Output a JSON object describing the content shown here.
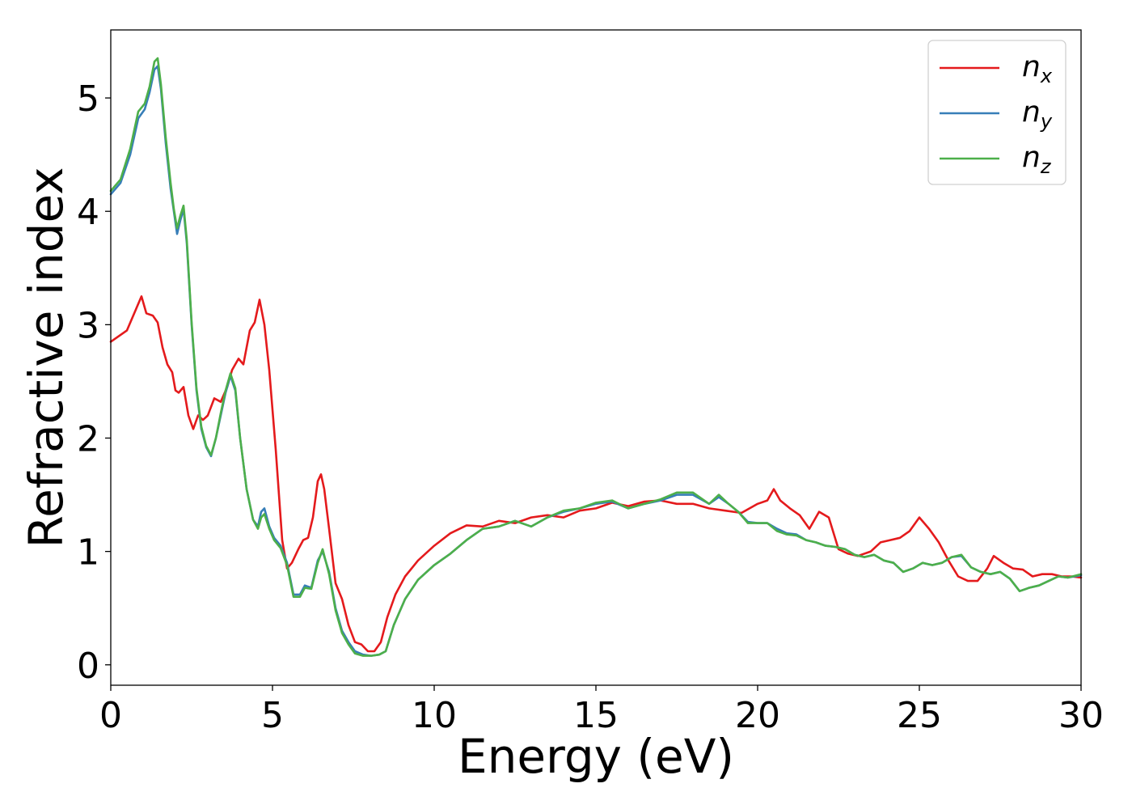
{
  "chart_data": {
    "type": "line",
    "xlabel": "Energy (eV)",
    "ylabel": "Refractive index",
    "xlim": [
      0,
      30
    ],
    "ylim": [
      -0.18,
      5.6
    ],
    "xticks": [
      0,
      5,
      10,
      15,
      20,
      25,
      30
    ],
    "xtick_labels": [
      "0",
      "5",
      "10",
      "15",
      "20",
      "25",
      "30"
    ],
    "yticks": [
      0,
      1,
      2,
      3,
      4,
      5
    ],
    "ytick_labels": [
      "0",
      "1",
      "2",
      "3",
      "4",
      "5"
    ],
    "grid": false,
    "legend_position": "top-right",
    "series": [
      {
        "name": "n_x",
        "legend_base": "n",
        "legend_sub": "x",
        "color": "#e41a1c",
        "x": [
          0,
          0.5,
          0.8,
          0.95,
          1.1,
          1.3,
          1.45,
          1.6,
          1.75,
          1.9,
          2.0,
          2.1,
          2.25,
          2.4,
          2.55,
          2.7,
          2.85,
          3.0,
          3.2,
          3.4,
          3.6,
          3.75,
          3.95,
          4.1,
          4.3,
          4.45,
          4.6,
          4.75,
          4.9,
          5.1,
          5.3,
          5.45,
          5.6,
          5.8,
          5.95,
          6.1,
          6.25,
          6.4,
          6.5,
          6.6,
          6.75,
          6.95,
          7.15,
          7.35,
          7.55,
          7.75,
          7.95,
          8.15,
          8.35,
          8.55,
          8.8,
          9.1,
          9.5,
          10.0,
          10.5,
          11.0,
          11.5,
          12.0,
          12.5,
          13.0,
          13.5,
          14.0,
          14.5,
          15.0,
          15.5,
          16.0,
          16.5,
          17.0,
          17.5,
          18.0,
          18.5,
          19.0,
          19.5,
          20.0,
          20.3,
          20.5,
          20.7,
          21.0,
          21.3,
          21.6,
          21.9,
          22.2,
          22.5,
          22.8,
          23.1,
          23.5,
          23.8,
          24.1,
          24.4,
          24.7,
          25.0,
          25.3,
          25.6,
          25.9,
          26.2,
          26.5,
          26.8,
          27.1,
          27.3,
          27.6,
          27.9,
          28.2,
          28.5,
          28.8,
          29.1,
          29.4,
          29.7,
          30.0
        ],
        "y": [
          2.85,
          2.95,
          3.15,
          3.25,
          3.1,
          3.08,
          3.02,
          2.8,
          2.65,
          2.58,
          2.42,
          2.4,
          2.45,
          2.2,
          2.08,
          2.2,
          2.16,
          2.2,
          2.35,
          2.32,
          2.45,
          2.6,
          2.7,
          2.65,
          2.95,
          3.02,
          3.22,
          3.0,
          2.6,
          1.9,
          1.1,
          0.85,
          0.9,
          1.02,
          1.1,
          1.12,
          1.3,
          1.62,
          1.68,
          1.55,
          1.2,
          0.72,
          0.58,
          0.35,
          0.2,
          0.18,
          0.12,
          0.12,
          0.2,
          0.42,
          0.62,
          0.78,
          0.92,
          1.05,
          1.16,
          1.23,
          1.22,
          1.27,
          1.25,
          1.3,
          1.32,
          1.3,
          1.36,
          1.38,
          1.43,
          1.4,
          1.44,
          1.45,
          1.42,
          1.42,
          1.38,
          1.36,
          1.34,
          1.42,
          1.45,
          1.55,
          1.45,
          1.38,
          1.32,
          1.2,
          1.35,
          1.3,
          1.02,
          0.98,
          0.96,
          1.0,
          1.08,
          1.1,
          1.12,
          1.18,
          1.3,
          1.2,
          1.08,
          0.92,
          0.78,
          0.74,
          0.74,
          0.85,
          0.96,
          0.9,
          0.85,
          0.84,
          0.78,
          0.8,
          0.8,
          0.78,
          0.78,
          0.77
        ]
      },
      {
        "name": "n_y",
        "legend_base": "n",
        "legend_sub": "y",
        "color": "#377eb8",
        "x": [
          0,
          0.3,
          0.6,
          0.85,
          1.05,
          1.2,
          1.35,
          1.45,
          1.55,
          1.7,
          1.85,
          1.95,
          2.05,
          2.15,
          2.25,
          2.35,
          2.5,
          2.65,
          2.8,
          2.95,
          3.1,
          3.25,
          3.4,
          3.55,
          3.7,
          3.85,
          4.0,
          4.2,
          4.4,
          4.55,
          4.65,
          4.75,
          4.9,
          5.05,
          5.25,
          5.45,
          5.65,
          5.85,
          6.0,
          6.2,
          6.4,
          6.55,
          6.75,
          6.95,
          7.15,
          7.35,
          7.55,
          7.8,
          8.05,
          8.3,
          8.5,
          8.75,
          9.1,
          9.5,
          10.0,
          10.5,
          11.0,
          11.5,
          12.0,
          12.5,
          13.0,
          13.5,
          14.0,
          14.5,
          15.0,
          15.5,
          16.0,
          16.5,
          17.0,
          17.5,
          18.0,
          18.5,
          18.8,
          19.1,
          19.4,
          19.7,
          20.0,
          20.3,
          20.6,
          20.9,
          21.2,
          21.5,
          21.8,
          22.1,
          22.4,
          22.7,
          23.0,
          23.3,
          23.6,
          23.9,
          24.2,
          24.5,
          24.8,
          25.1,
          25.4,
          25.7,
          26.0,
          26.3,
          26.6,
          26.9,
          27.2,
          27.5,
          27.8,
          28.1,
          28.4,
          28.7,
          29.0,
          29.3,
          29.6,
          30.0
        ],
        "y": [
          4.15,
          4.25,
          4.5,
          4.82,
          4.9,
          5.05,
          5.25,
          5.28,
          5.08,
          4.6,
          4.2,
          4.0,
          3.8,
          3.92,
          4.02,
          3.72,
          3.0,
          2.42,
          2.08,
          1.92,
          1.84,
          2.0,
          2.2,
          2.4,
          2.55,
          2.42,
          2.0,
          1.55,
          1.28,
          1.22,
          1.35,
          1.38,
          1.22,
          1.12,
          1.05,
          0.9,
          0.62,
          0.62,
          0.7,
          0.68,
          0.92,
          1.0,
          0.82,
          0.5,
          0.3,
          0.2,
          0.12,
          0.09,
          0.08,
          0.09,
          0.12,
          0.35,
          0.58,
          0.75,
          0.88,
          0.98,
          1.1,
          1.2,
          1.22,
          1.27,
          1.22,
          1.3,
          1.35,
          1.38,
          1.42,
          1.44,
          1.38,
          1.42,
          1.45,
          1.5,
          1.5,
          1.42,
          1.48,
          1.42,
          1.35,
          1.26,
          1.25,
          1.25,
          1.2,
          1.16,
          1.15,
          1.1,
          1.08,
          1.05,
          1.04,
          1.02,
          0.97,
          0.95,
          0.97,
          0.92,
          0.9,
          0.82,
          0.85,
          0.9,
          0.88,
          0.9,
          0.95,
          0.96,
          0.86,
          0.82,
          0.8,
          0.82,
          0.76,
          0.65,
          0.68,
          0.7,
          0.74,
          0.78,
          0.77,
          0.79
        ]
      },
      {
        "name": "n_z",
        "legend_base": "n",
        "legend_sub": "z",
        "color": "#4daf4a",
        "x": [
          0,
          0.3,
          0.6,
          0.85,
          1.05,
          1.2,
          1.35,
          1.45,
          1.55,
          1.7,
          1.85,
          1.95,
          2.05,
          2.15,
          2.25,
          2.35,
          2.5,
          2.65,
          2.8,
          2.95,
          3.1,
          3.25,
          3.4,
          3.55,
          3.7,
          3.85,
          4.0,
          4.2,
          4.4,
          4.55,
          4.65,
          4.75,
          4.9,
          5.05,
          5.25,
          5.45,
          5.65,
          5.85,
          6.0,
          6.2,
          6.4,
          6.55,
          6.75,
          6.95,
          7.15,
          7.35,
          7.55,
          7.8,
          8.05,
          8.3,
          8.5,
          8.75,
          9.1,
          9.5,
          10.0,
          10.5,
          11.0,
          11.5,
          12.0,
          12.5,
          13.0,
          13.5,
          14.0,
          14.5,
          15.0,
          15.5,
          16.0,
          16.5,
          17.0,
          17.5,
          18.0,
          18.5,
          18.8,
          19.1,
          19.4,
          19.7,
          20.0,
          20.3,
          20.6,
          20.9,
          21.2,
          21.5,
          21.8,
          22.1,
          22.4,
          22.7,
          23.0,
          23.3,
          23.6,
          23.9,
          24.2,
          24.5,
          24.8,
          25.1,
          25.4,
          25.7,
          26.0,
          26.3,
          26.6,
          26.9,
          27.2,
          27.5,
          27.8,
          28.1,
          28.4,
          28.7,
          29.0,
          29.3,
          29.6,
          30.0
        ],
        "y": [
          4.18,
          4.28,
          4.55,
          4.88,
          4.95,
          5.1,
          5.32,
          5.35,
          5.12,
          4.65,
          4.25,
          4.02,
          3.85,
          3.96,
          4.05,
          3.75,
          3.02,
          2.44,
          2.1,
          1.93,
          1.85,
          2.0,
          2.22,
          2.42,
          2.57,
          2.44,
          2.0,
          1.55,
          1.28,
          1.2,
          1.3,
          1.33,
          1.2,
          1.1,
          1.03,
          0.88,
          0.6,
          0.6,
          0.68,
          0.67,
          0.9,
          1.02,
          0.8,
          0.48,
          0.28,
          0.18,
          0.1,
          0.08,
          0.08,
          0.09,
          0.12,
          0.35,
          0.58,
          0.75,
          0.88,
          0.98,
          1.1,
          1.2,
          1.22,
          1.27,
          1.22,
          1.3,
          1.36,
          1.38,
          1.43,
          1.45,
          1.38,
          1.42,
          1.46,
          1.52,
          1.52,
          1.42,
          1.5,
          1.42,
          1.35,
          1.25,
          1.25,
          1.25,
          1.18,
          1.15,
          1.14,
          1.1,
          1.08,
          1.05,
          1.04,
          1.02,
          0.97,
          0.95,
          0.97,
          0.92,
          0.9,
          0.82,
          0.85,
          0.9,
          0.88,
          0.9,
          0.95,
          0.97,
          0.86,
          0.82,
          0.8,
          0.82,
          0.76,
          0.65,
          0.68,
          0.7,
          0.74,
          0.78,
          0.77,
          0.8
        ]
      }
    ]
  }
}
